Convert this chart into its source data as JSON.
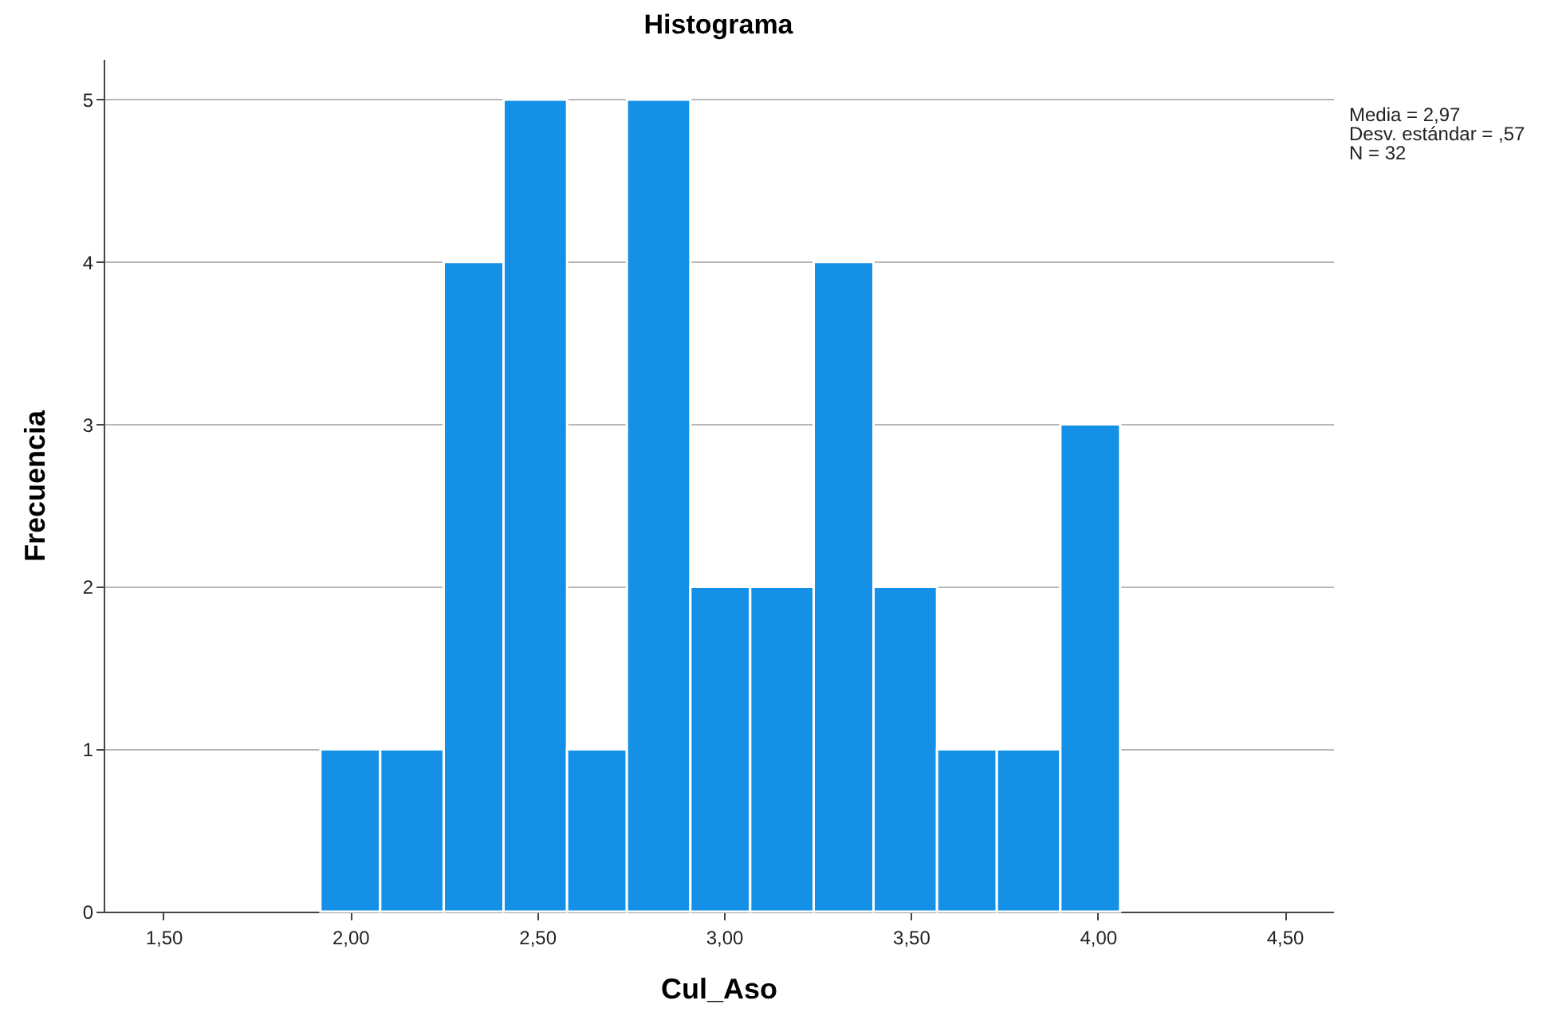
{
  "chart_data": {
    "type": "histogram",
    "title": "Histograma",
    "xlabel": "Cul_Aso",
    "ylabel": "Frecuencia",
    "bins": [
      1.92,
      2.08,
      2.25,
      2.41,
      2.58,
      2.74,
      2.91,
      3.07,
      3.24,
      3.4,
      3.57,
      3.73,
      3.9,
      4.06
    ],
    "values": [
      1,
      1,
      4,
      5,
      1,
      5,
      2,
      2,
      4,
      2,
      1,
      1,
      3
    ],
    "color": "#1490e6",
    "xlim": [
      1.34,
      4.63
    ],
    "xticks": [
      {
        "value": 1.5,
        "label": "1,50"
      },
      {
        "value": 2.0,
        "label": "2,00"
      },
      {
        "value": 2.5,
        "label": "2,50"
      },
      {
        "value": 3.0,
        "label": "3,00"
      },
      {
        "value": 3.5,
        "label": "3,50"
      },
      {
        "value": 4.0,
        "label": "4,00"
      },
      {
        "value": 4.5,
        "label": "4,50"
      }
    ],
    "ylim": [
      0,
      5.25
    ],
    "yticks": [
      0,
      1,
      2,
      3,
      4,
      5
    ],
    "grid": "y",
    "annotations": [
      "Media = 2,97",
      "Desv. estándar = ,57",
      "N = 32"
    ]
  }
}
